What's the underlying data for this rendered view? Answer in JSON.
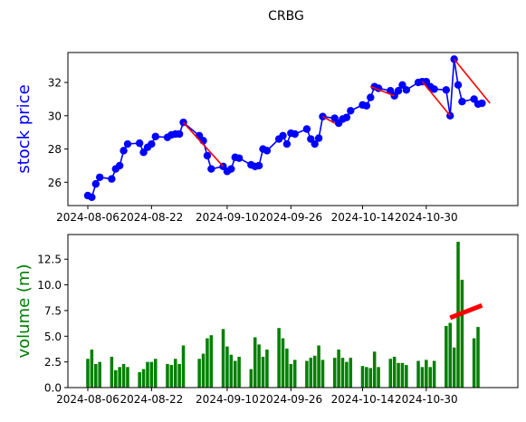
{
  "figure_title": "CRBG",
  "chart_data": [
    {
      "type": "line",
      "ylabel": "stock price",
      "xlabel": "",
      "ylim": [
        24.6,
        33.8
      ],
      "xlim": [
        "2024-08-01",
        "2024-11-22"
      ],
      "yticks": [
        26,
        28,
        30,
        32
      ],
      "xtick_labels": [
        "2024-08-06",
        "2024-08-22",
        "2024-09-10",
        "2024-09-26",
        "2024-10-14",
        "2024-10-30"
      ],
      "colors": {
        "line": "#0000ff",
        "trend": "#ff0000",
        "ylabel": "#0000ff"
      },
      "series": [
        {
          "x": [
            "2024-08-06",
            "2024-08-07",
            "2024-08-08",
            "2024-08-09",
            "2024-08-12",
            "2024-08-13",
            "2024-08-14",
            "2024-08-15",
            "2024-08-16",
            "2024-08-19",
            "2024-08-20",
            "2024-08-21",
            "2024-08-22",
            "2024-08-23",
            "2024-08-26",
            "2024-08-27",
            "2024-08-28",
            "2024-08-29",
            "2024-08-30",
            "2024-09-03",
            "2024-09-04",
            "2024-09-05",
            "2024-09-06",
            "2024-09-09",
            "2024-09-10",
            "2024-09-11",
            "2024-09-12",
            "2024-09-13",
            "2024-09-16",
            "2024-09-17",
            "2024-09-18",
            "2024-09-19",
            "2024-09-20",
            "2024-09-23",
            "2024-09-24",
            "2024-09-25",
            "2024-09-26",
            "2024-09-27",
            "2024-09-30",
            "2024-10-01",
            "2024-10-02",
            "2024-10-03",
            "2024-10-04",
            "2024-10-07",
            "2024-10-08",
            "2024-10-09",
            "2024-10-10",
            "2024-10-11",
            "2024-10-14",
            "2024-10-15",
            "2024-10-16",
            "2024-10-17",
            "2024-10-18",
            "2024-10-21",
            "2024-10-22",
            "2024-10-23",
            "2024-10-24",
            "2024-10-25",
            "2024-10-28",
            "2024-10-29",
            "2024-10-30",
            "2024-10-31",
            "2024-11-01",
            "2024-11-04",
            "2024-11-05",
            "2024-11-06",
            "2024-11-07",
            "2024-11-08",
            "2024-11-11",
            "2024-11-12",
            "2024-11-13",
            "2024-11-14",
            "2024-11-15",
            "2024-11-18"
          ],
          "y": [
            25.2,
            25.1,
            25.9,
            26.3,
            26.2,
            26.8,
            27.0,
            27.9,
            28.3,
            28.35,
            27.8,
            28.1,
            28.3,
            28.75,
            28.7,
            28.85,
            28.9,
            28.9,
            29.6,
            28.8,
            28.5,
            27.6,
            26.8,
            26.95,
            26.65,
            26.8,
            27.5,
            27.45,
            27.05,
            26.95,
            27.0,
            28.0,
            27.9,
            28.6,
            28.8,
            28.3,
            28.95,
            28.9,
            29.2,
            28.6,
            28.3,
            28.65,
            29.95,
            29.85,
            29.55,
            29.8,
            29.9,
            30.3,
            30.65,
            30.6,
            31.1,
            31.75,
            31.65,
            31.5,
            31.2,
            31.5,
            31.85,
            31.55,
            32.0,
            32.05,
            32.05,
            31.75,
            31.6,
            31.55,
            30.0,
            33.4,
            31.85,
            30.85,
            31.0,
            30.7,
            30.75,
            null,
            null,
            null
          ]
        }
      ],
      "trend_segments": [
        {
          "x": [
            "2024-08-30",
            "2024-09-09"
          ],
          "y": [
            29.6,
            26.95
          ]
        },
        {
          "x": [
            "2024-10-04",
            "2024-10-07"
          ],
          "y": [
            29.95,
            29.55
          ]
        },
        {
          "x": [
            "2024-10-16",
            "2024-10-22"
          ],
          "y": [
            31.75,
            31.2
          ]
        },
        {
          "x": [
            "2024-10-29",
            "2024-11-05"
          ],
          "y": [
            32.05,
            30.0
          ]
        },
        {
          "x": [
            "2024-11-06",
            "2024-11-15"
          ],
          "y": [
            33.4,
            30.75
          ]
        }
      ]
    },
    {
      "type": "bar",
      "ylabel": "volume (m)",
      "xlabel": "",
      "ylim": [
        0,
        14.9
      ],
      "xlim": [
        "2024-08-01",
        "2024-11-22"
      ],
      "yticks": [
        0.0,
        2.5,
        5.0,
        7.5,
        10.0,
        12.5
      ],
      "ytick_labels": [
        "0.0",
        "2.5",
        "5.0",
        "7.5",
        "10.0",
        "12.5"
      ],
      "xtick_labels": [
        "2024-08-06",
        "2024-08-22",
        "2024-09-10",
        "2024-09-26",
        "2024-10-14",
        "2024-10-30"
      ],
      "colors": {
        "bar": "#008000",
        "trend": "#ff0000",
        "ylabel": "#008000"
      },
      "x": [
        "2024-08-06",
        "2024-08-07",
        "2024-08-08",
        "2024-08-09",
        "2024-08-12",
        "2024-08-13",
        "2024-08-14",
        "2024-08-15",
        "2024-08-16",
        "2024-08-19",
        "2024-08-20",
        "2024-08-21",
        "2024-08-22",
        "2024-08-23",
        "2024-08-26",
        "2024-08-27",
        "2024-08-28",
        "2024-08-29",
        "2024-08-30",
        "2024-09-03",
        "2024-09-04",
        "2024-09-05",
        "2024-09-06",
        "2024-09-09",
        "2024-09-10",
        "2024-09-11",
        "2024-09-12",
        "2024-09-13",
        "2024-09-16",
        "2024-09-17",
        "2024-09-18",
        "2024-09-19",
        "2024-09-20",
        "2024-09-23",
        "2024-09-24",
        "2024-09-25",
        "2024-09-26",
        "2024-09-27",
        "2024-09-30",
        "2024-10-01",
        "2024-10-02",
        "2024-10-03",
        "2024-10-04",
        "2024-10-07",
        "2024-10-08",
        "2024-10-09",
        "2024-10-10",
        "2024-10-11",
        "2024-10-14",
        "2024-10-15",
        "2024-10-16",
        "2024-10-17",
        "2024-10-18",
        "2024-10-21",
        "2024-10-22",
        "2024-10-23",
        "2024-10-24",
        "2024-10-25",
        "2024-10-28",
        "2024-10-29",
        "2024-10-30",
        "2024-10-31",
        "2024-11-01",
        "2024-11-04",
        "2024-11-05",
        "2024-11-06",
        "2024-11-07",
        "2024-11-08",
        "2024-11-11",
        "2024-11-12",
        "2024-11-13",
        "2024-11-14",
        "2024-11-15",
        "2024-11-18"
      ],
      "values": [
        2.8,
        3.7,
        2.3,
        2.5,
        3.0,
        1.7,
        2.0,
        2.3,
        2.0,
        1.5,
        1.8,
        2.5,
        2.5,
        2.8,
        2.3,
        2.2,
        2.8,
        2.3,
        4.1,
        2.8,
        3.3,
        4.8,
        5.1,
        5.7,
        4.0,
        3.2,
        2.6,
        3.0,
        1.8,
        4.9,
        4.2,
        3.0,
        3.7,
        5.8,
        4.8,
        3.8,
        2.3,
        2.7,
        2.6,
        2.9,
        3.1,
        4.1,
        2.7,
        2.9,
        3.7,
        2.9,
        2.5,
        2.9,
        2.1,
        2.0,
        1.9,
        3.5,
        2.0,
        2.8,
        3.0,
        2.4,
        2.4,
        2.2,
        2.6,
        2.0,
        2.7,
        2.0,
        2.6,
        6.0,
        6.3,
        3.9,
        14.2,
        10.5,
        4.8,
        5.9,
        null,
        null,
        null,
        null
      ],
      "trend_segments": [
        {
          "x": [
            "2024-11-05",
            "2024-11-13"
          ],
          "y": [
            6.8,
            8.0
          ]
        }
      ]
    }
  ]
}
